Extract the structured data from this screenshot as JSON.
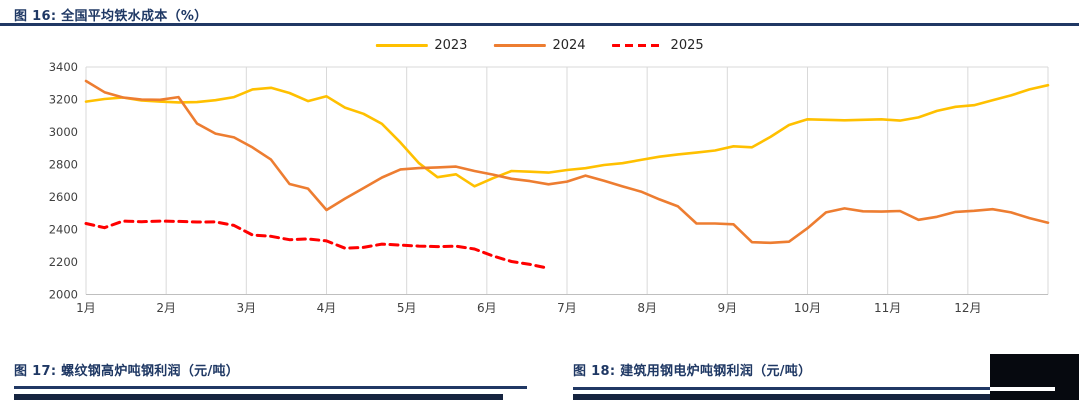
{
  "figure16": {
    "title": "图 16:  全国平均铁水成本（%）"
  },
  "figure17": {
    "title": "图 17:  螺纹钢高炉吨钢利润（元/吨）"
  },
  "figure18": {
    "title": "图 18:  建筑用钢电炉吨钢利润（元/吨）"
  },
  "colors": {
    "title_navy": "#1F3864",
    "rule_navy": "#203864",
    "grid": "#D9D9D9",
    "axis_line": "#BFBFBF",
    "axis_text": "#404040",
    "series_2023": "#FFC000",
    "series_2024": "#ED7D31",
    "series_2025": "#FF0000"
  },
  "chart_data": {
    "type": "line",
    "title": "全国平均铁水成本（%）",
    "legend_position": "top-center",
    "grid": "vertical-only",
    "x_axis": {
      "tick_labels": [
        "1月",
        "2月",
        "3月",
        "4月",
        "5月",
        "6月",
        "7月",
        "8月",
        "9月",
        "10月",
        "11月",
        "12月"
      ],
      "points_per_series": "weekly"
    },
    "y_axis": {
      "min": 2000,
      "max": 3400,
      "tick_step": 200,
      "ticks": [
        2000,
        2200,
        2400,
        2600,
        2800,
        3000,
        3200,
        3400
      ]
    },
    "series": [
      {
        "name": "2023",
        "color": "#FFC000",
        "style": "solid",
        "values": [
          3187,
          3203,
          3212,
          3194,
          3187,
          3182,
          3184,
          3196,
          3215,
          3262,
          3272,
          3240,
          3190,
          3220,
          3150,
          3112,
          3050,
          2935,
          2808,
          2722,
          2740,
          2666,
          2716,
          2760,
          2756,
          2750,
          2766,
          2777,
          2797,
          2808,
          2828,
          2848,
          2862,
          2873,
          2886,
          2912,
          2906,
          2970,
          3043,
          3078,
          3075,
          3072,
          3075,
          3078,
          3070,
          3090,
          3130,
          3155,
          3165,
          3195,
          3225,
          3262,
          3288
        ]
      },
      {
        "name": "2024",
        "color": "#ED7D31",
        "style": "solid",
        "values": [
          3314,
          3245,
          3212,
          3200,
          3198,
          3215,
          3052,
          2990,
          2967,
          2905,
          2830,
          2680,
          2652,
          2520,
          2590,
          2655,
          2720,
          2770,
          2778,
          2782,
          2787,
          2760,
          2738,
          2712,
          2698,
          2678,
          2695,
          2732,
          2700,
          2665,
          2633,
          2585,
          2542,
          2437,
          2437,
          2432,
          2322,
          2318,
          2325,
          2408,
          2505,
          2530,
          2512,
          2510,
          2514,
          2460,
          2478,
          2508,
          2515,
          2525,
          2505,
          2470,
          2442
        ]
      },
      {
        "name": "2025",
        "color": "#FF0000",
        "style": "dashed",
        "values": [
          2437,
          2411,
          2452,
          2448,
          2452,
          2450,
          2446,
          2447,
          2425,
          2366,
          2358,
          2337,
          2342,
          2330,
          2285,
          2290,
          2310,
          2304,
          2298,
          2295,
          2297,
          2280,
          2237,
          2203,
          2185,
          2161
        ]
      }
    ]
  }
}
